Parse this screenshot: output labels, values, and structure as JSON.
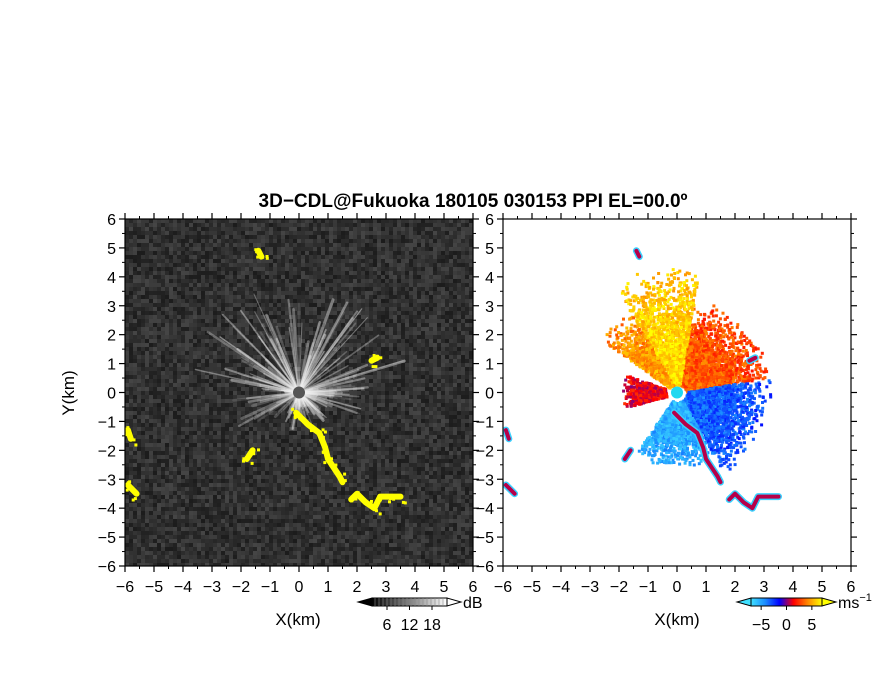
{
  "chart_data": {
    "title": "3D−CDL@Fukuoka 180105 030153 PPI EL=00.0º",
    "panels": [
      {
        "type": "heatmap",
        "quantity": "echo intensity (gray) with hard-target mask (yellow)",
        "xlabel": "X(km)",
        "ylabel": "Y(km)",
        "xlim": [
          -6,
          6
        ],
        "ylim": [
          -6,
          6
        ],
        "x_ticks": [
          "−6",
          "−5",
          "−4",
          "−3",
          "−2",
          "−1",
          "0",
          "1",
          "2",
          "3",
          "4",
          "5",
          "6"
        ],
        "y_ticks": [
          "6",
          "5",
          "4",
          "3",
          "2",
          "1",
          "0",
          "−1",
          "−2",
          "−3",
          "−4",
          "−5",
          "−6"
        ],
        "colorbar": {
          "unit": "dB",
          "ticks": [
            "6",
            "12",
            "18"
          ],
          "range": [
            2,
            22
          ],
          "colors": [
            "#000000",
            "#ffffff"
          ],
          "extend": "both"
        },
        "mask_color": "#ffff00",
        "center_color": "#555555",
        "grid": false,
        "yellow_echoes_km": [
          [
            [
              -0.1,
              -0.7
            ],
            [
              0.3,
              -1.1
            ],
            [
              0.7,
              -1.4
            ],
            [
              0.9,
              -1.9
            ],
            [
              1.0,
              -2.3
            ],
            [
              1.2,
              -2.6
            ],
            [
              1.4,
              -2.9
            ],
            [
              1.5,
              -3.1
            ]
          ],
          [
            [
              1.8,
              -3.7
            ],
            [
              2.0,
              -3.5
            ],
            [
              2.3,
              -3.8
            ],
            [
              2.6,
              -4.0
            ],
            [
              2.8,
              -3.6
            ],
            [
              3.1,
              -3.6
            ],
            [
              3.5,
              -3.6
            ]
          ],
          [
            [
              -5.9,
              -1.3
            ],
            [
              -5.8,
              -1.6
            ]
          ],
          [
            [
              -5.9,
              -3.2
            ],
            [
              -5.6,
              -3.5
            ]
          ],
          [
            [
              -1.6,
              -2.0
            ],
            [
              -1.8,
              -2.3
            ]
          ],
          [
            [
              2.5,
              1.1
            ],
            [
              2.7,
              1.2
            ]
          ],
          [
            [
              -1.4,
              4.9
            ],
            [
              -1.3,
              4.7
            ]
          ]
        ]
      },
      {
        "type": "heatmap",
        "quantity": "radial velocity",
        "xlabel": "X(km)",
        "xlim": [
          -6,
          6
        ],
        "ylim": [
          -6,
          6
        ],
        "x_ticks": [
          "−6",
          "−5",
          "−4",
          "−3",
          "−2",
          "−1",
          "0",
          "1",
          "2",
          "3",
          "4",
          "5",
          "6"
        ],
        "y_ticks": [
          "6",
          "5",
          "4",
          "3",
          "2",
          "1",
          "0",
          "−1",
          "−2",
          "−3",
          "−4",
          "−5",
          "−6"
        ],
        "colorbar": {
          "unit": "ms",
          "unit_exponent": "−1",
          "ticks": [
            "−5",
            "0",
            "5"
          ],
          "range": [
            -7,
            7
          ],
          "extend": "both",
          "colors": [
            "#40e0ff",
            "#1a8cff",
            "#0000ff",
            "#ff0000",
            "#ff8800",
            "#ffff00"
          ]
        },
        "center_color": "#20d8f0",
        "grid": false,
        "velocity_regions_ms": [
          {
            "sector_deg": [
              10,
              80
            ],
            "range_km": [
              0.3,
              3.3
            ],
            "velocity": 3.5
          },
          {
            "sector_deg": [
              80,
              120
            ],
            "range_km": [
              0.3,
              4.5
            ],
            "velocity": 6.5
          },
          {
            "sector_deg": [
              120,
              145
            ],
            "range_km": [
              0.3,
              3.3
            ],
            "velocity": 5
          },
          {
            "sector_deg": [
              -60,
              10
            ],
            "range_km": [
              0.3,
              3.2
            ],
            "velocity": -3.5
          },
          {
            "sector_deg": [
              -125,
              -60
            ],
            "range_km": [
              0.3,
              2.6
            ],
            "velocity": -5.5
          },
          {
            "sector_deg": [
              160,
              195
            ],
            "range_km": [
              0.4,
              2.0
            ],
            "velocity": 1.5
          }
        ]
      }
    ]
  }
}
